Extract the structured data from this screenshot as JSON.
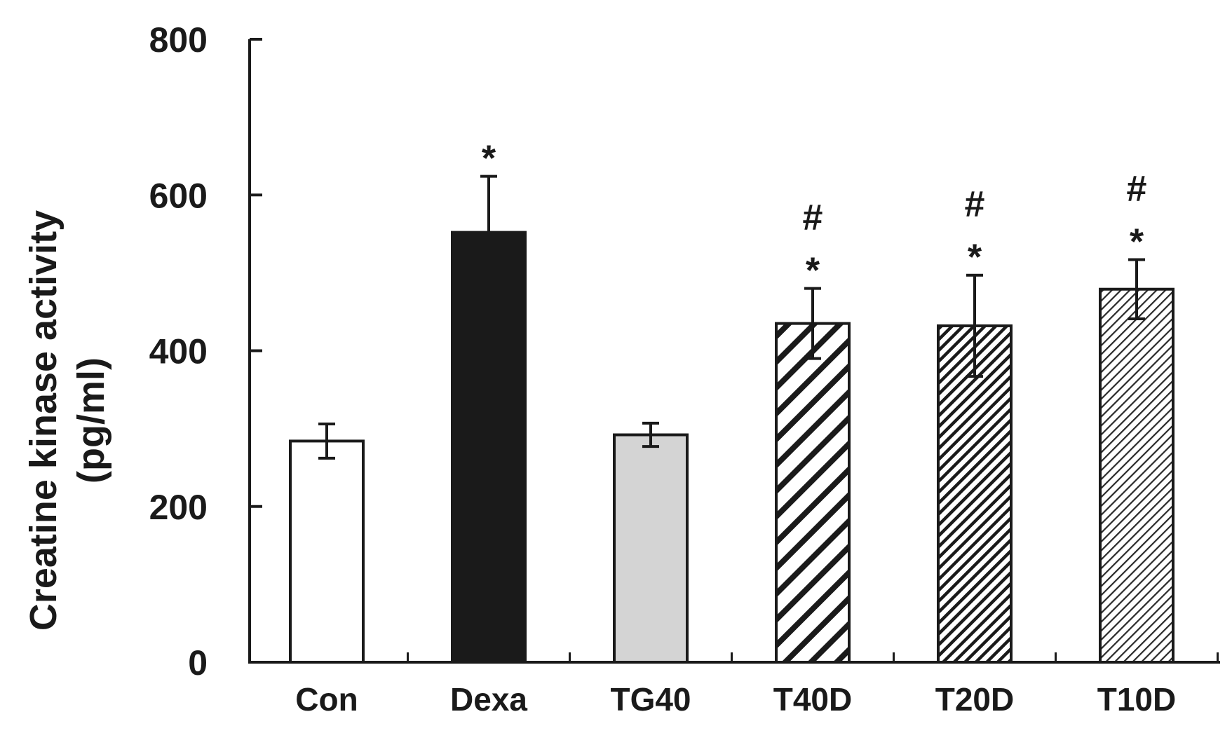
{
  "chart_data": {
    "type": "bar",
    "title": "",
    "xlabel": "",
    "ylabel": "Creatine kinase activity",
    "ylabel_unit": "(pg/ml)",
    "ylim": [
      0,
      800
    ],
    "yticks": [
      "0",
      "200",
      "400",
      "600",
      "800"
    ],
    "categories": [
      "Con",
      "Dexa",
      "TG40",
      "T40D",
      "T20D",
      "T10D"
    ],
    "values": [
      284,
      552,
      292,
      435,
      432,
      479
    ],
    "errors": [
      22,
      72,
      15,
      45,
      65,
      38
    ],
    "annotations": [
      [],
      [
        "*"
      ],
      [],
      [
        "#",
        "*"
      ],
      [
        "#",
        "*"
      ],
      [
        "#",
        "*"
      ]
    ],
    "fills": [
      "white",
      "solid-black",
      "light-gray",
      "wide-hatch",
      "dense-hatch",
      "fine-hatch"
    ],
    "colors": {
      "axis": "#1a1a1a",
      "bar_outline": "#1a1a1a",
      "black_fill": "#1a1a1a",
      "gray_fill": "#d4d4d4",
      "white_fill": "#ffffff"
    }
  }
}
